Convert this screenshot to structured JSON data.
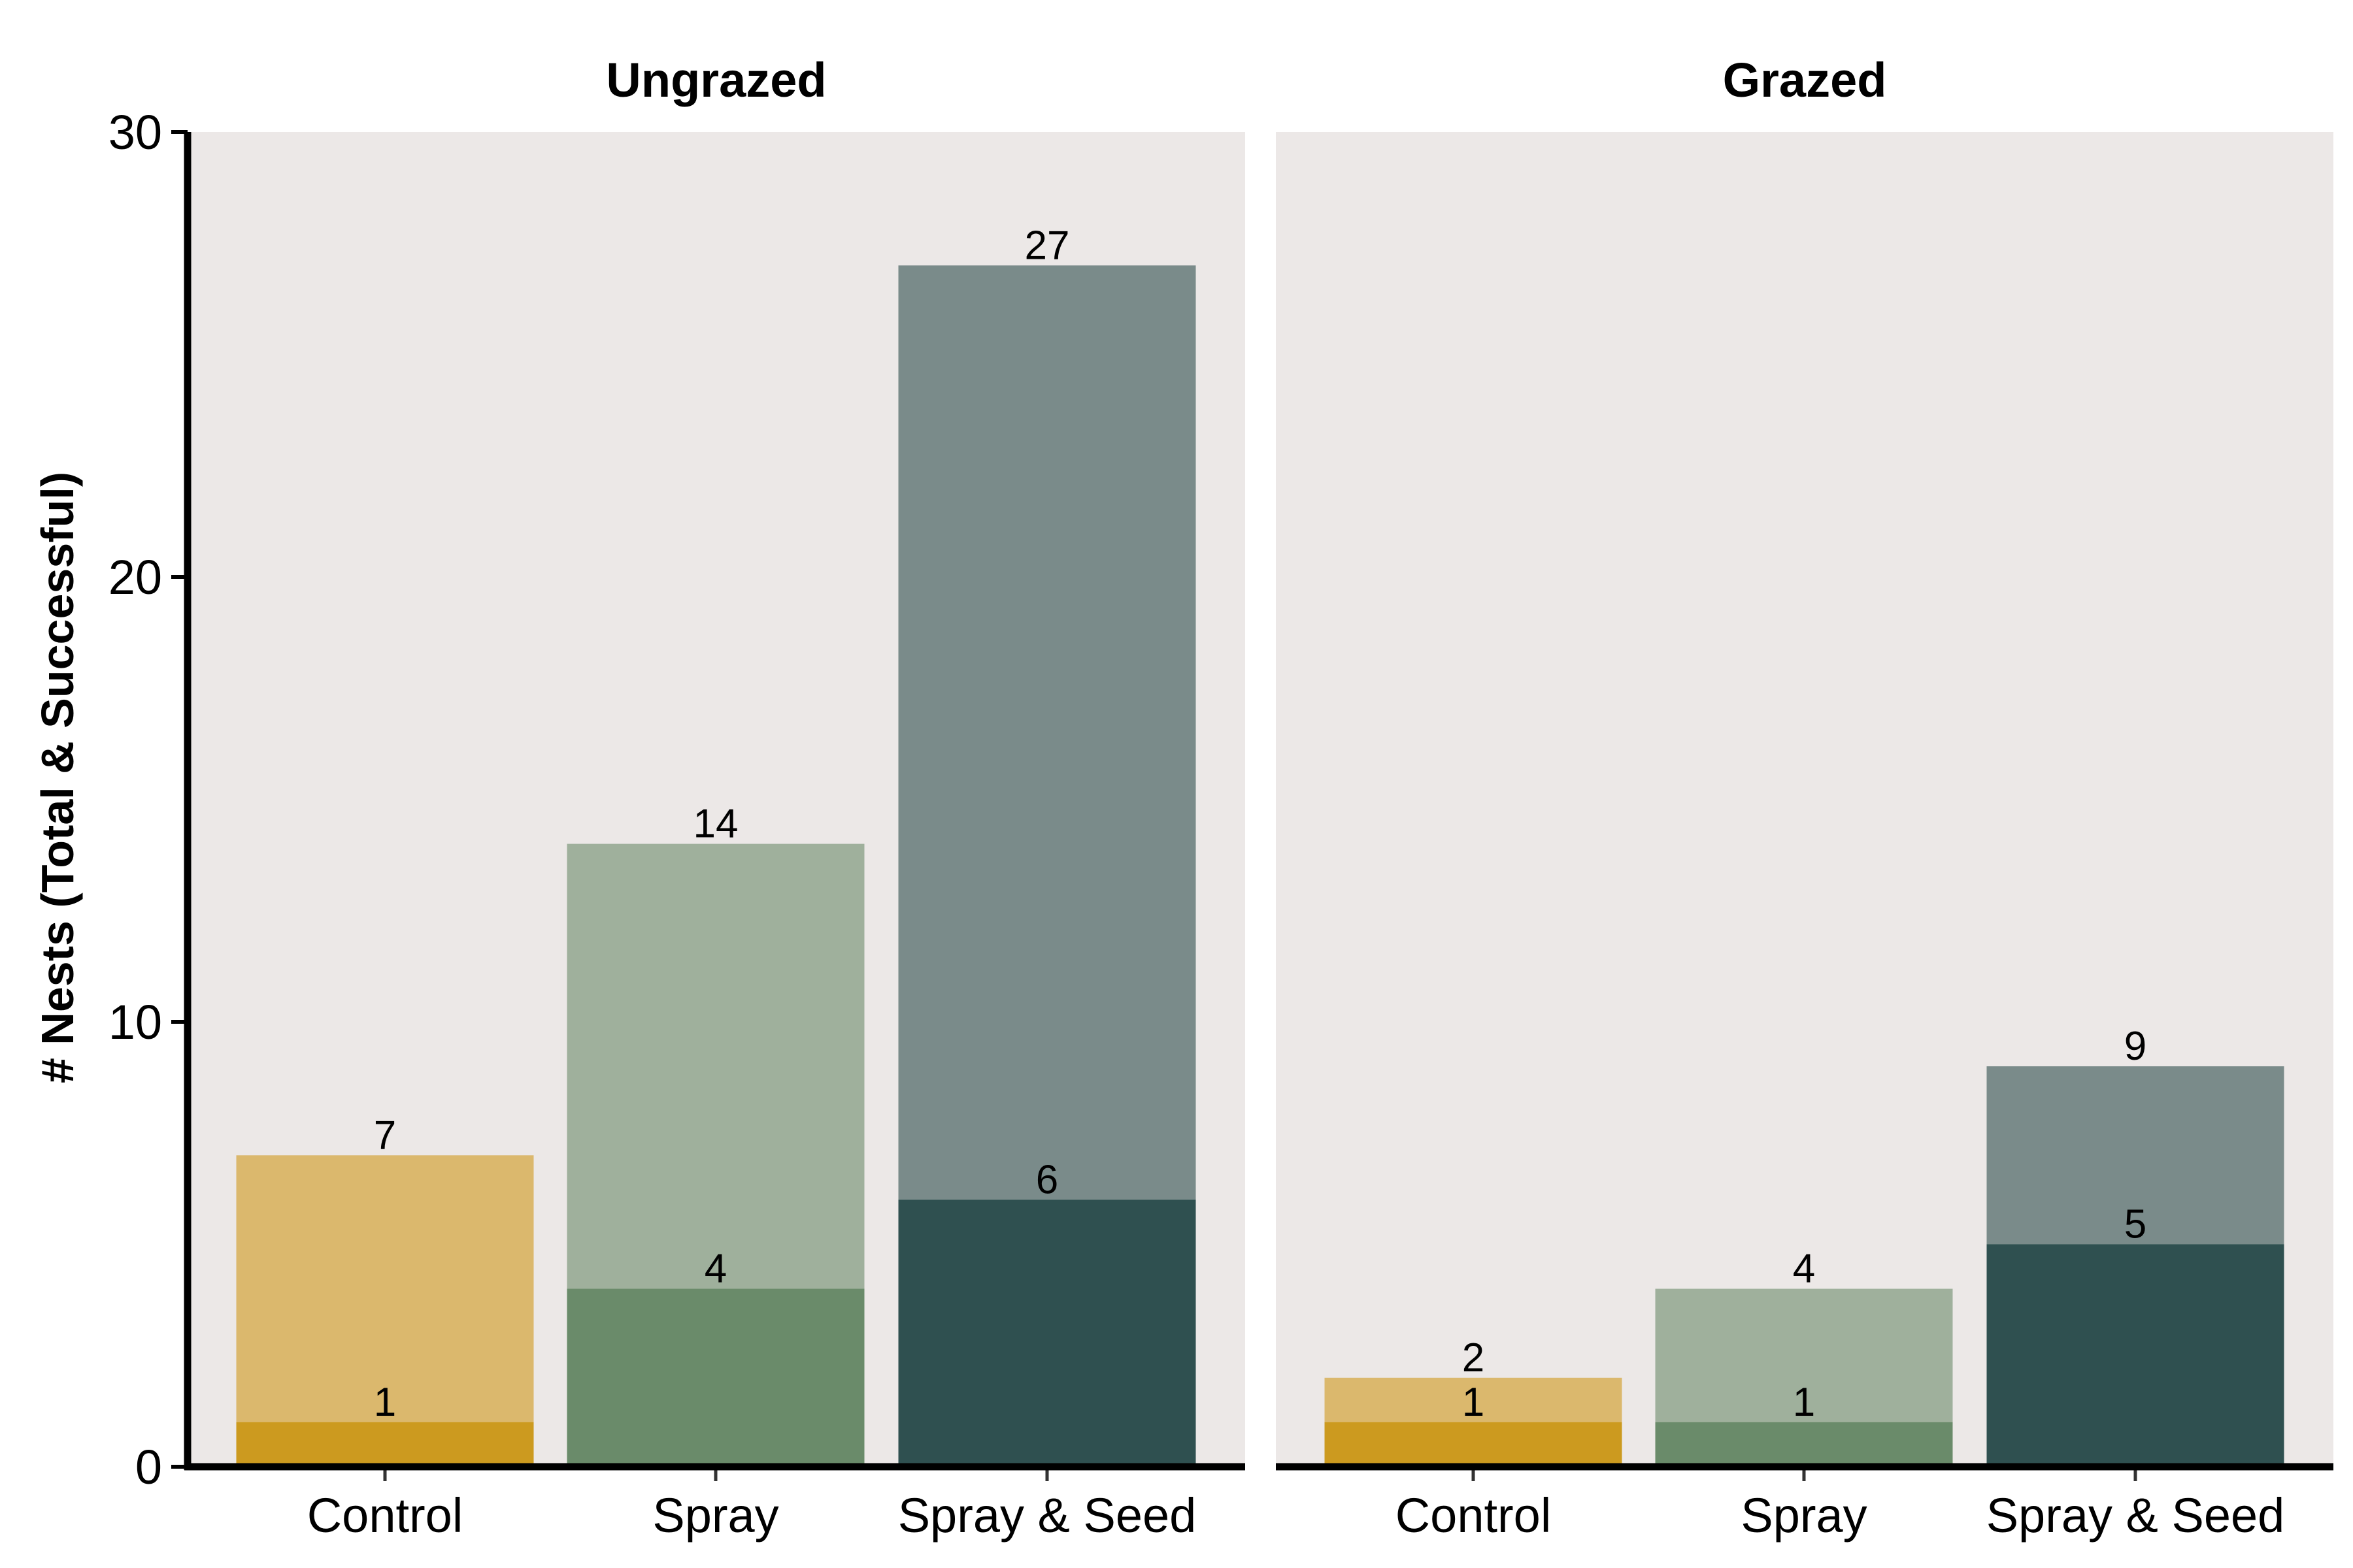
{
  "chart_data": {
    "type": "bar",
    "ylabel": "# Nests (Total & Successful)",
    "xlabel": "",
    "ylim": [
      0,
      30
    ],
    "yticks": [
      0,
      10,
      20,
      30
    ],
    "categories": [
      "Control",
      "Spray",
      "Spray & Seed"
    ],
    "panel_background": "#ece8e7",
    "colors": {
      "total": [
        "#dbb86d",
        "#9fb09c",
        "#7a8b8a"
      ],
      "successful": [
        "#cc9a1f",
        "#6a8b6a",
        "#2f5050"
      ]
    },
    "facets": [
      {
        "title": "Ungrazed",
        "total": [
          7,
          14,
          27
        ],
        "successful": [
          1,
          4,
          6
        ]
      },
      {
        "title": "Grazed",
        "total": [
          2,
          4,
          9
        ],
        "successful": [
          1,
          1,
          5
        ]
      }
    ]
  }
}
